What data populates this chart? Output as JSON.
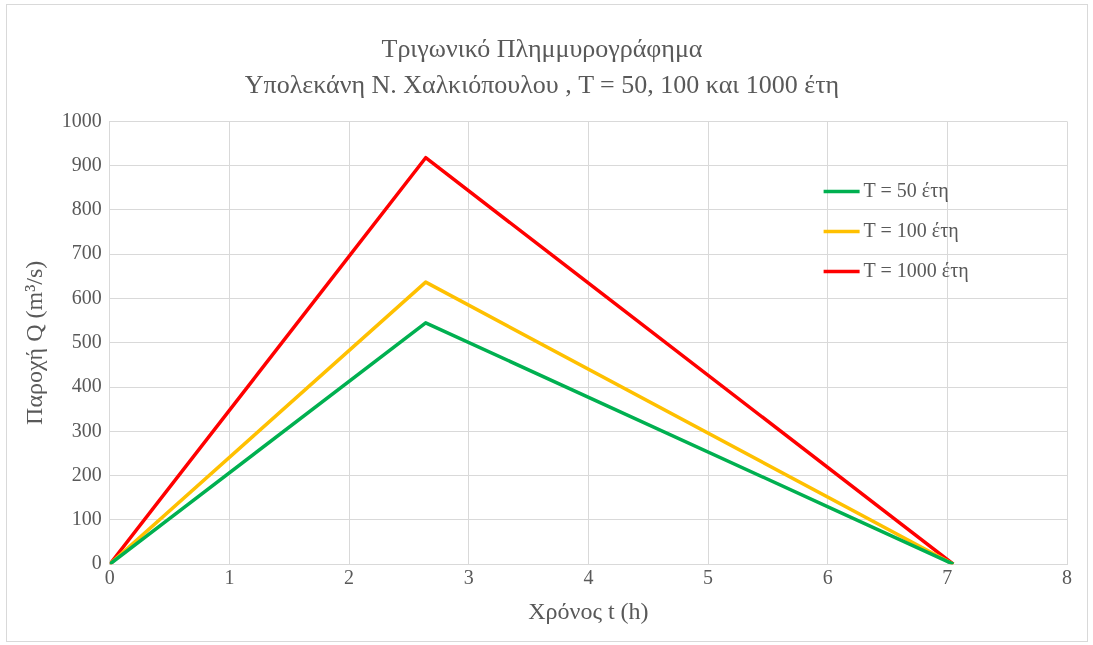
{
  "chart_data": {
    "type": "line",
    "title": "Τριγωνικό Πλημμυρογράφημα",
    "subtitle": "Υπολεκάνη Ν. Χαλκιόπουλου , T = 50, 100 και 1000 έτη",
    "xlabel": "Χρόνος t (h)",
    "ylabel": "Παροχή Q (m³/s)",
    "x": [
      0,
      2.64,
      7.05
    ],
    "series": [
      {
        "name": "T = 50 έτη",
        "color": "#00b050",
        "values": [
          0,
          545,
          0
        ]
      },
      {
        "name": "T = 100 έτη",
        "color": "#ffc000",
        "values": [
          0,
          637,
          0
        ]
      },
      {
        "name": "T = 1000 έτη",
        "color": "#ff0000",
        "values": [
          0,
          918,
          0
        ]
      }
    ],
    "xlim": [
      0,
      8
    ],
    "xticks": [
      0,
      1,
      2,
      3,
      4,
      5,
      6,
      7,
      8
    ],
    "ylim": [
      0,
      1000
    ],
    "yticks": [
      0,
      100,
      200,
      300,
      400,
      500,
      600,
      700,
      800,
      900,
      1000
    ],
    "grid": true,
    "legend": "right",
    "marker": "none",
    "line_style": "solid"
  }
}
